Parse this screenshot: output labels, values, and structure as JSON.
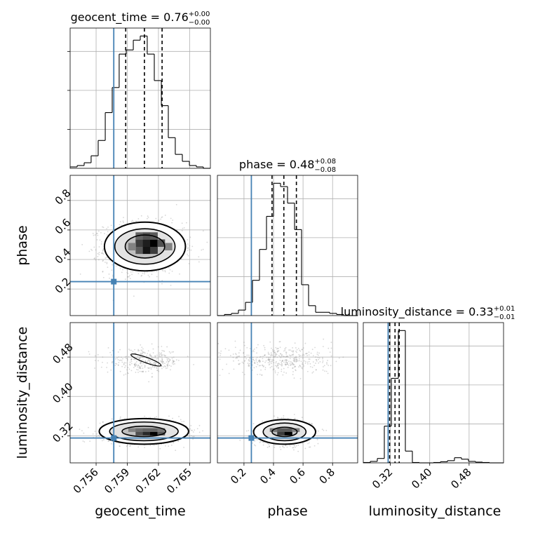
{
  "chart_data": {
    "type": "corner",
    "parameters": [
      "geocent_time",
      "phase",
      "luminosity_distance"
    ],
    "truths": {
      "geocent_time": 0.7577,
      "phase": 0.25,
      "luminosity_distance": 0.3155
    },
    "truth_color": "#4682b4",
    "grid": true,
    "panels": [
      {
        "param": "geocent_time",
        "type": "histogram",
        "title": {
          "prefix": "geocent_time = ",
          "value": "0.76",
          "plus": "+0.00",
          "minus": "−0.00"
        },
        "xlim": [
          0.7535,
          0.767
        ],
        "bin_edges": [
          0.7535,
          0.75418,
          0.75485,
          0.75552,
          0.7562,
          0.75688,
          0.75755,
          0.75822,
          0.7589,
          0.75958,
          0.76025,
          0.76092,
          0.7616,
          0.76228,
          0.76295,
          0.76362,
          0.7643,
          0.76498,
          0.76565,
          0.76632,
          0.767
        ],
        "counts": [
          1,
          2,
          4,
          9,
          20,
          40,
          58,
          82,
          85,
          92,
          95,
          82,
          63,
          45,
          22,
          10,
          5,
          2,
          1,
          0
        ],
        "quantiles": [
          0.75885,
          0.76065,
          0.76235
        ]
      },
      {
        "param": "phase",
        "type": "histogram",
        "title": {
          "prefix": "phase = ",
          "value": "0.48",
          "plus": "+0.08",
          "minus": "−0.08"
        },
        "xlim": [
          0.02,
          0.97
        ],
        "bin_edges": [
          0.02,
          0.0675,
          0.115,
          0.1625,
          0.21,
          0.2575,
          0.305,
          0.3525,
          0.4,
          0.4475,
          0.495,
          0.5425,
          0.59,
          0.6375,
          0.685,
          0.7325,
          0.78,
          0.8275,
          0.875,
          0.9225,
          0.97
        ],
        "counts": [
          0,
          1,
          2,
          5,
          12,
          32,
          60,
          90,
          120,
          117,
          102,
          78,
          28,
          9,
          3,
          3,
          2,
          1,
          0,
          0
        ],
        "quantiles": [
          0.39,
          0.47,
          0.555
        ]
      },
      {
        "param": "luminosity_distance",
        "type": "histogram",
        "title": {
          "prefix": "luminosity_distance = ",
          "value": "0.33",
          "plus": "+0.01",
          "minus": "−0.01"
        },
        "xlim": [
          0.265,
          0.55
        ],
        "bin_edges": [
          0.265,
          0.27925,
          0.2935,
          0.30775,
          0.322,
          0.33625,
          0.3505,
          0.36475,
          0.379,
          0.39325,
          0.4075,
          0.42175,
          0.436,
          0.45025,
          0.4645,
          0.47875,
          0.493,
          0.50725,
          0.5215,
          0.53575,
          0.55
        ],
        "counts": [
          1,
          4,
          12,
          100,
          230,
          360,
          32,
          1,
          0,
          0,
          1,
          3,
          6,
          14,
          10,
          4,
          2,
          1,
          0,
          0
        ],
        "quantiles": [
          0.3185,
          0.3295,
          0.338
        ]
      },
      {
        "x": "geocent_time",
        "y": "phase",
        "type": "scatter-density",
        "xlim": [
          0.7535,
          0.767
        ],
        "ylim": [
          0.02,
          0.97
        ],
        "clusters": [
          {
            "x_mean": 0.7606,
            "x_sd": 0.0019,
            "y_mean": 0.48,
            "y_sd": 0.085,
            "n": 1400
          }
        ],
        "contours": [
          {
            "cx": 0.7607,
            "cy": 0.488,
            "rx": 0.0039,
            "ry": 0.165
          },
          {
            "cx": 0.7607,
            "cy": 0.488,
            "rx": 0.0029,
            "ry": 0.12
          },
          {
            "cx": 0.7607,
            "cy": 0.488,
            "rx": 0.0019,
            "ry": 0.078
          }
        ],
        "density_cells": [
          {
            "x": 0.7598,
            "y": 0.44,
            "w": 0.0007,
            "h": 0.048,
            "shade": 0.55
          },
          {
            "x": 0.7605,
            "y": 0.44,
            "w": 0.0007,
            "h": 0.048,
            "shade": 0.9
          },
          {
            "x": 0.7612,
            "y": 0.44,
            "w": 0.0007,
            "h": 0.048,
            "shade": 0.7
          },
          {
            "x": 0.7598,
            "y": 0.488,
            "w": 0.0007,
            "h": 0.048,
            "shade": 0.7
          },
          {
            "x": 0.7605,
            "y": 0.488,
            "w": 0.0007,
            "h": 0.048,
            "shade": 0.85
          },
          {
            "x": 0.7612,
            "y": 0.488,
            "w": 0.0007,
            "h": 0.048,
            "shade": 1.0
          },
          {
            "x": 0.7619,
            "y": 0.488,
            "w": 0.0007,
            "h": 0.048,
            "shade": 0.6
          },
          {
            "x": 0.7598,
            "y": 0.536,
            "w": 0.0007,
            "h": 0.048,
            "shade": 0.5
          },
          {
            "x": 0.7605,
            "y": 0.536,
            "w": 0.0007,
            "h": 0.048,
            "shade": 0.6
          },
          {
            "x": 0.7612,
            "y": 0.536,
            "w": 0.0007,
            "h": 0.048,
            "shade": 0.55
          },
          {
            "x": 0.7591,
            "y": 0.464,
            "w": 0.0007,
            "h": 0.048,
            "shade": 0.35
          },
          {
            "x": 0.7626,
            "y": 0.464,
            "w": 0.0007,
            "h": 0.048,
            "shade": 0.35
          }
        ],
        "yticks": [
          0.2,
          0.4,
          0.6,
          0.8
        ],
        "ytick_labels": [
          "0.2",
          "0.4",
          "0.6",
          "0.8"
        ],
        "ylabel": "phase"
      },
      {
        "x": "geocent_time",
        "y": "luminosity_distance",
        "type": "scatter-density",
        "xlim": [
          0.7535,
          0.767
        ],
        "ylim": [
          0.265,
          0.55
        ],
        "clusters": [
          {
            "x_mean": 0.7605,
            "x_sd": 0.0019,
            "y_mean": 0.328,
            "y_sd": 0.011,
            "n": 1500
          },
          {
            "x_mean": 0.7607,
            "x_sd": 0.0018,
            "y_mean": 0.471,
            "y_sd": 0.012,
            "n": 320
          }
        ],
        "contours": [
          {
            "cx": 0.7606,
            "cy": 0.329,
            "rx": 0.0043,
            "ry": 0.026
          },
          {
            "cx": 0.7606,
            "cy": 0.329,
            "rx": 0.0033,
            "ry": 0.019
          },
          {
            "cx": 0.7606,
            "cy": 0.329,
            "rx": 0.0021,
            "ry": 0.0105
          }
        ],
        "small_contour": {
          "cx": 0.7608,
          "cy": 0.474,
          "rx": 0.0007,
          "ry": 0.0055
        },
        "density_cells": [
          {
            "x": 0.7598,
            "y": 0.3215,
            "w": 0.0007,
            "h": 0.007,
            "shade": 0.6
          },
          {
            "x": 0.7605,
            "y": 0.3215,
            "w": 0.0007,
            "h": 0.007,
            "shade": 0.8
          },
          {
            "x": 0.7612,
            "y": 0.3215,
            "w": 0.0007,
            "h": 0.007,
            "shade": 1.0
          },
          {
            "x": 0.7619,
            "y": 0.3215,
            "w": 0.0007,
            "h": 0.007,
            "shade": 0.55
          },
          {
            "x": 0.7591,
            "y": 0.3285,
            "w": 0.0007,
            "h": 0.007,
            "shade": 0.35
          },
          {
            "x": 0.7598,
            "y": 0.3285,
            "w": 0.0007,
            "h": 0.007,
            "shade": 0.45
          },
          {
            "x": 0.7605,
            "y": 0.3285,
            "w": 0.0007,
            "h": 0.007,
            "shade": 0.5
          },
          {
            "x": 0.7612,
            "y": 0.3285,
            "w": 0.0007,
            "h": 0.007,
            "shade": 0.5
          },
          {
            "x": 0.7619,
            "y": 0.3285,
            "w": 0.0007,
            "h": 0.007,
            "shade": 0.4
          }
        ],
        "xticks": [
          0.756,
          0.759,
          0.762,
          0.765
        ],
        "xtick_labels": [
          "0.756",
          "0.759",
          "0.762",
          "0.765"
        ],
        "yticks": [
          0.32,
          0.4,
          0.48
        ],
        "ytick_labels": [
          "0.32",
          "0.40",
          "0.48"
        ],
        "xlabel": "geocent_time",
        "ylabel": "luminosity_distance"
      },
      {
        "x": "phase",
        "y": "luminosity_distance",
        "type": "scatter-density",
        "xlim": [
          0.02,
          0.97
        ],
        "ylim": [
          0.265,
          0.55
        ],
        "clusters": [
          {
            "x_mean": 0.48,
            "x_sd": 0.085,
            "y_mean": 0.327,
            "y_sd": 0.011,
            "n": 1500
          },
          {
            "x_mean": 0.45,
            "x_sd": 0.17,
            "y_mean": 0.475,
            "y_sd": 0.016,
            "n": 420
          }
        ],
        "contours": [
          {
            "cx": 0.475,
            "cy": 0.328,
            "rx": 0.21,
            "ry": 0.025
          },
          {
            "cx": 0.475,
            "cy": 0.328,
            "rx": 0.145,
            "ry": 0.018
          },
          {
            "cx": 0.475,
            "cy": 0.328,
            "rx": 0.085,
            "ry": 0.0095
          }
        ],
        "density_cells": [
          {
            "x": 0.425,
            "y": 0.3215,
            "w": 0.05,
            "h": 0.007,
            "shade": 0.7
          },
          {
            "x": 0.475,
            "y": 0.3215,
            "w": 0.05,
            "h": 0.007,
            "shade": 1.0
          },
          {
            "x": 0.375,
            "y": 0.3285,
            "w": 0.05,
            "h": 0.007,
            "shade": 0.4
          },
          {
            "x": 0.425,
            "y": 0.3285,
            "w": 0.05,
            "h": 0.007,
            "shade": 0.55
          },
          {
            "x": 0.475,
            "y": 0.3285,
            "w": 0.05,
            "h": 0.007,
            "shade": 0.55
          },
          {
            "x": 0.525,
            "y": 0.3285,
            "w": 0.05,
            "h": 0.007,
            "shade": 0.35
          }
        ],
        "xticks": [
          0.2,
          0.4,
          0.6,
          0.8
        ],
        "xtick_labels": [
          "0.2",
          "0.4",
          "0.6",
          "0.8"
        ],
        "xlabel": "phase"
      }
    ],
    "diag_bottom_axis": {
      "param": "luminosity_distance",
      "xticks": [
        0.32,
        0.4,
        0.48
      ],
      "xtick_labels": [
        "0.32",
        "0.40",
        "0.48"
      ],
      "xlabel": "luminosity_distance"
    }
  }
}
